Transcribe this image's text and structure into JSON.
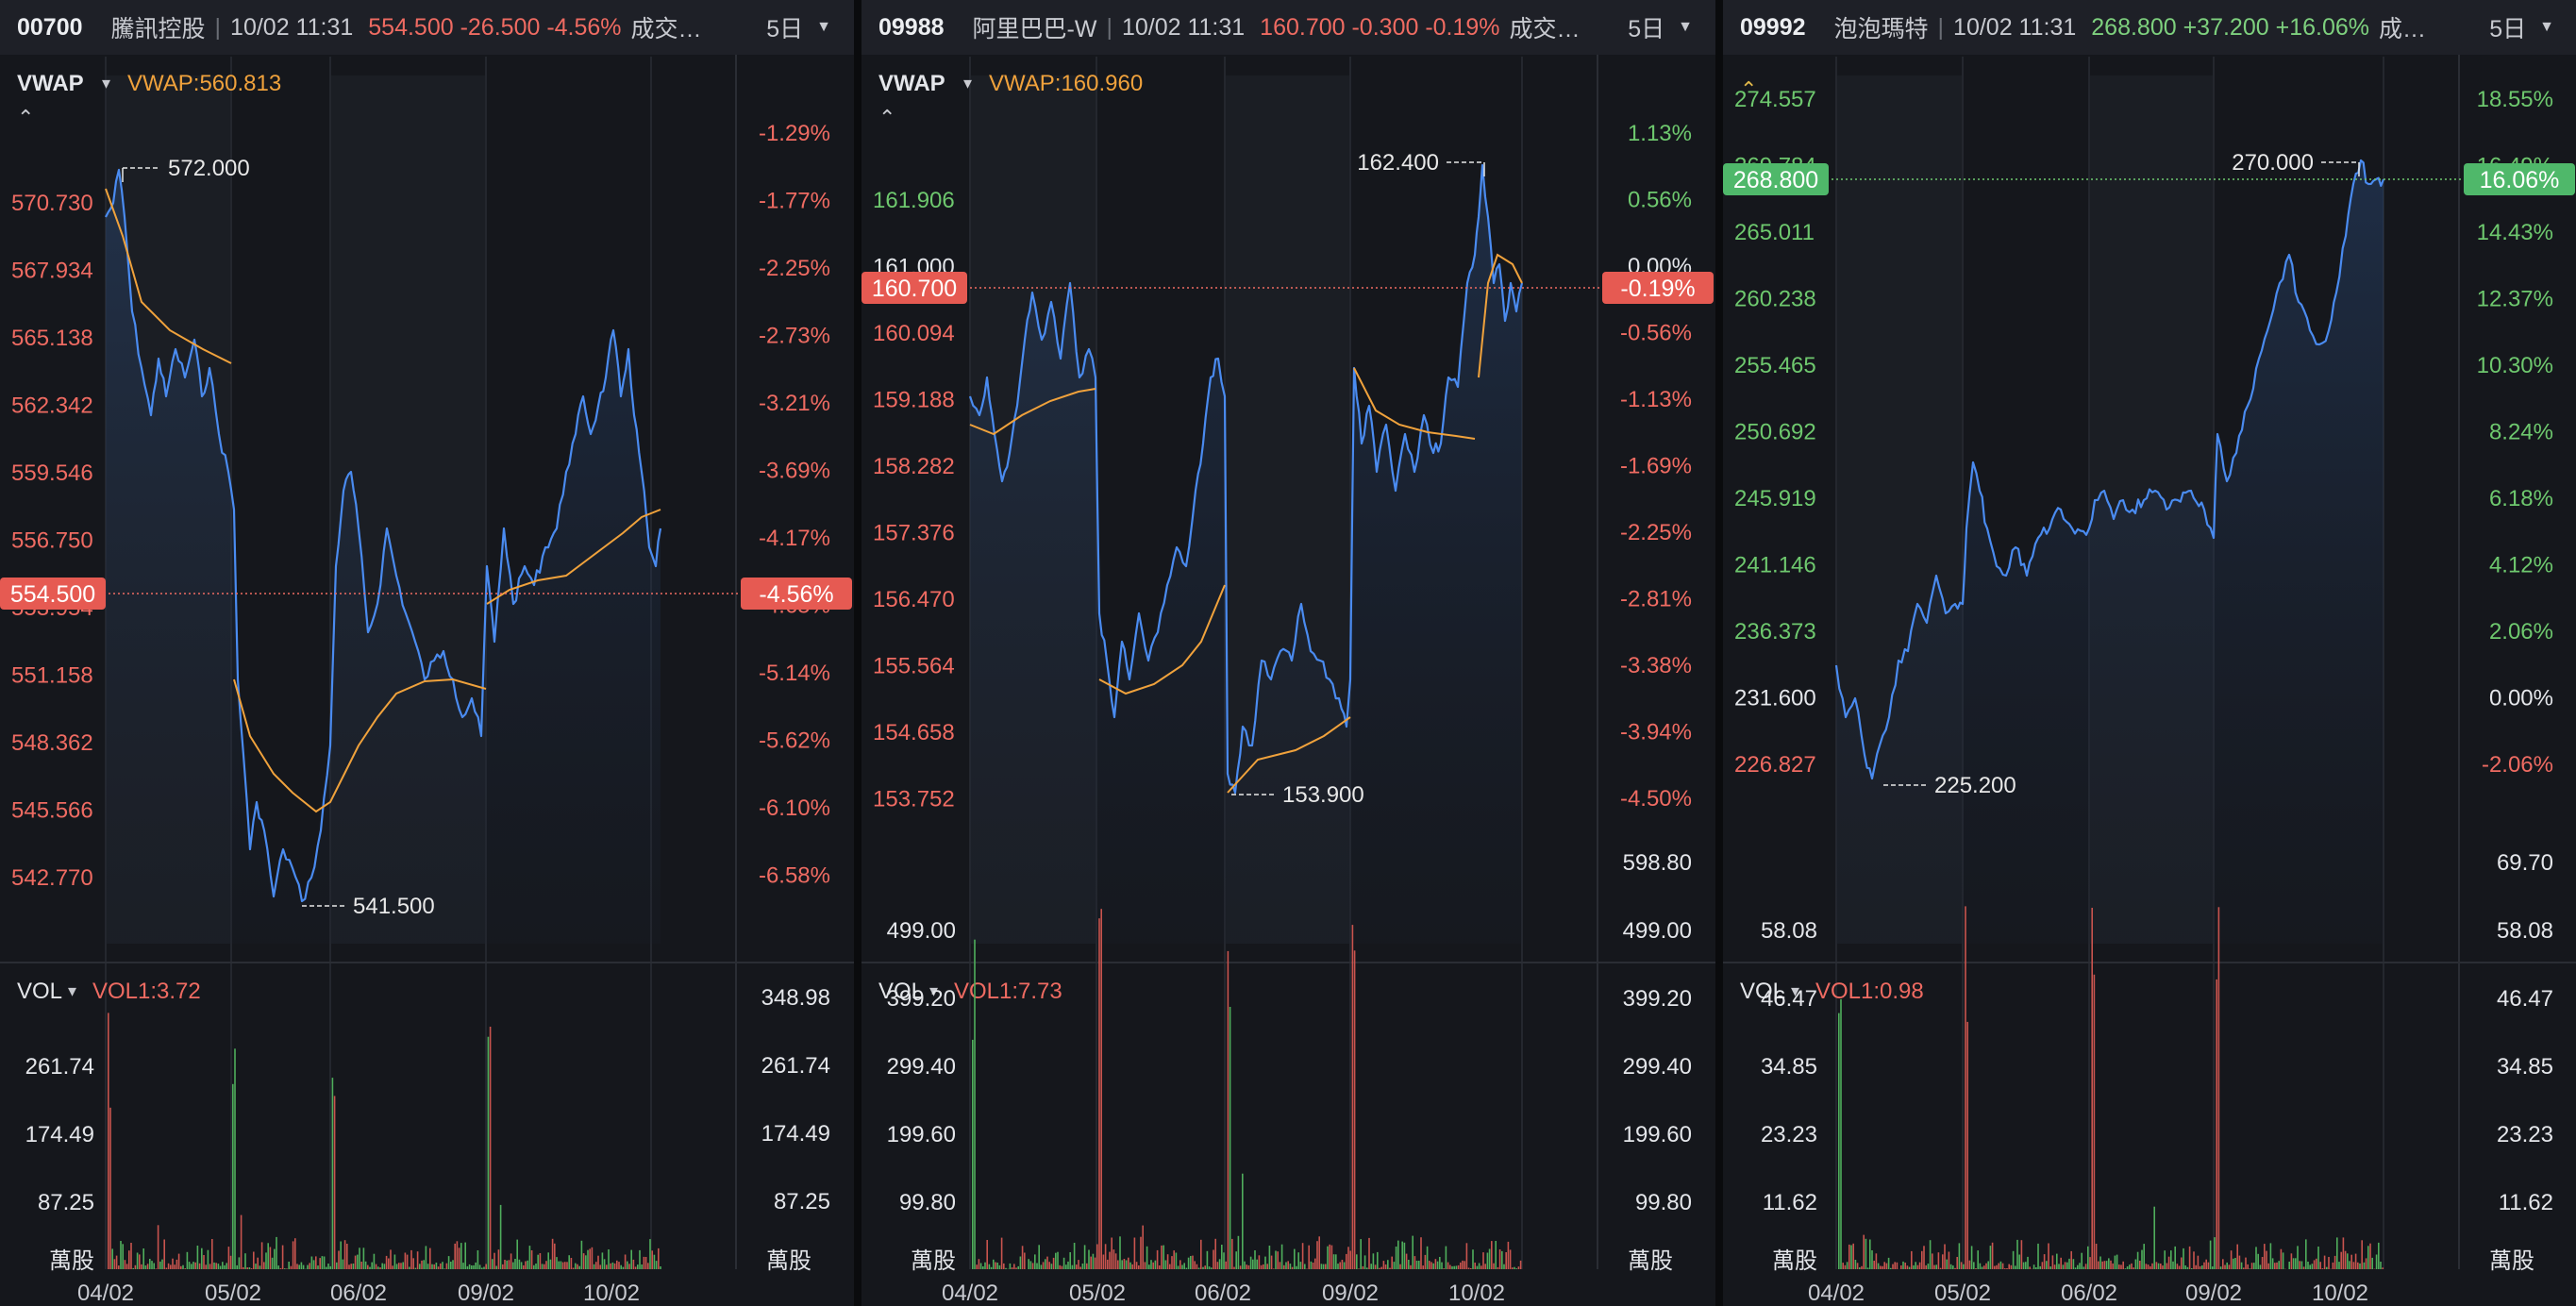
{
  "colors": {
    "up": "#6ec86e",
    "down": "#ef6b62",
    "line": "#4a8bf0",
    "vwap": "#f0a23c",
    "bg": "#15171c"
  },
  "panels": [
    {
      "code": "00700",
      "name": "騰訊控股",
      "time": "10/02 11:31",
      "change": "554.500 -26.500 -4.56%",
      "volume_label": "成交…",
      "period": "5日",
      "indicator": "VWAP",
      "indicator_value": "VWAP:560.813",
      "indicator_color": "#f0a23c",
      "direction": "down",
      "left_ticks": [
        "570.730",
        "567.934",
        "565.138",
        "562.342",
        "559.546",
        "556.750",
        "553.954",
        "551.158",
        "548.362",
        "545.566",
        "542.770"
      ],
      "right_ticks": [
        "-1.29%",
        "-1.77%",
        "-2.25%",
        "-2.73%",
        "-3.21%",
        "-3.69%",
        "-4.17%",
        "-4.65%",
        "-5.14%",
        "-5.62%",
        "-6.10%",
        "-6.58%"
      ],
      "current_price_badge": "554.500",
      "current_pct_badge": "-4.56%",
      "high_label": "572.000",
      "low_label": "541.500",
      "vol_indicator": "VOL1:3.72",
      "vol_left_ticks": [
        "261.74",
        "174.49",
        "87.25"
      ],
      "vol_right_ticks": [
        "348.98",
        "261.74",
        "174.49",
        "87.25"
      ],
      "unit": "萬股",
      "dates": [
        "04/02",
        "05/02",
        "06/02",
        "09/02",
        "10/02"
      ]
    },
    {
      "code": "09988",
      "name": "阿里巴巴-W",
      "time": "10/02 11:31",
      "change": "160.700 -0.300 -0.19%",
      "volume_label": "成交…",
      "period": "5日",
      "indicator": "VWAP",
      "indicator_value": "VWAP:160.960",
      "indicator_color": "#f0a23c",
      "direction": "down",
      "left_ticks": [
        "161.906",
        "161.000",
        "160.094",
        "159.188",
        "158.282",
        "157.376",
        "156.470",
        "155.564",
        "154.658",
        "153.752"
      ],
      "right_ticks": [
        "1.13%",
        "0.56%",
        "0.00%",
        "-0.56%",
        "-1.13%",
        "-1.69%",
        "-2.25%",
        "-2.81%",
        "-3.38%",
        "-3.94%",
        "-4.50%"
      ],
      "current_price_badge": "160.700",
      "current_pct_badge": "-0.19%",
      "high_label": "162.400",
      "low_label": "153.900",
      "vol_indicator": "VOL1:7.73",
      "vol_left_ticks": [
        "499.00",
        "399.20",
        "299.40",
        "199.60",
        "99.80"
      ],
      "vol_right_ticks": [
        "598.80",
        "499.00",
        "399.20",
        "299.40",
        "199.60",
        "99.80"
      ],
      "unit": "萬股",
      "dates": [
        "04/02",
        "05/02",
        "06/02",
        "09/02",
        "10/02"
      ]
    },
    {
      "code": "09992",
      "name": "泡泡瑪特",
      "time": "10/02 11:31",
      "change": "268.800 +37.200 +16.06%",
      "volume_label": "成…",
      "period": "5日",
      "indicator": "",
      "indicator_value": "",
      "indicator_color": "#f0a23c",
      "direction": "up",
      "left_ticks": [
        "274.557",
        "269.784",
        "265.011",
        "260.238",
        "255.465",
        "250.692",
        "245.919",
        "241.146",
        "236.373",
        "231.600",
        "226.827"
      ],
      "right_ticks": [
        "18.55%",
        "16.49%",
        "14.43%",
        "12.37%",
        "10.30%",
        "8.24%",
        "6.18%",
        "4.12%",
        "2.06%",
        "0.00%",
        "-2.06%"
      ],
      "current_price_badge": "268.800",
      "current_pct_badge": "16.06%",
      "high_label": "270.000",
      "low_label": "225.200",
      "vol_indicator": "VOL1:0.98",
      "vol_left_ticks": [
        "58.08",
        "46.47",
        "34.85",
        "23.23",
        "11.62"
      ],
      "vol_right_ticks": [
        "69.70",
        "58.08",
        "46.47",
        "34.85",
        "23.23",
        "11.62"
      ],
      "unit": "萬股",
      "dates": [
        "04/02",
        "05/02",
        "06/02",
        "09/02",
        "10/02"
      ]
    }
  ]
}
